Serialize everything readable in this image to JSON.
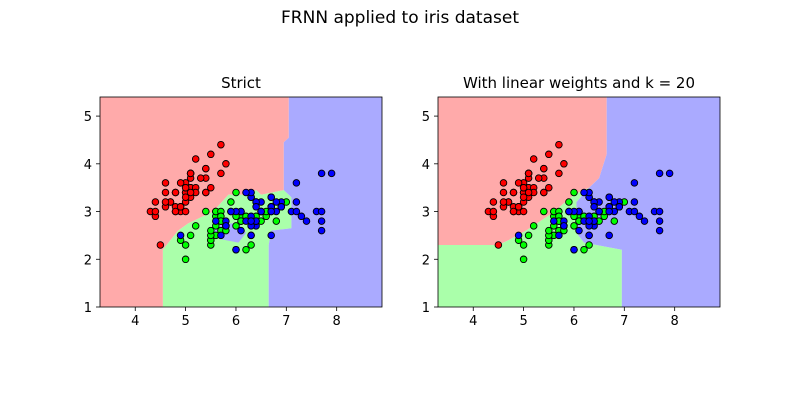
{
  "figure": {
    "suptitle": "FRNN applied to iris dataset"
  },
  "colors": {
    "region_setosa": "#ffaaaa",
    "region_versicolor": "#aaffaa",
    "region_virginica": "#aaaaff",
    "point_setosa": "#ff0000",
    "point_versicolor": "#00ff00",
    "point_virginica": "#0000ff",
    "point_edge": "#000000"
  },
  "chart_data": [
    {
      "type": "scatter",
      "title": "Strict",
      "xlabel": "",
      "ylabel": "",
      "xlim": [
        3.3,
        8.9
      ],
      "ylim": [
        1.0,
        5.4
      ],
      "xticks": [
        4,
        5,
        6,
        7,
        8
      ],
      "yticks": [
        1,
        2,
        3,
        4,
        5
      ],
      "grid": false,
      "background": "decision regions",
      "regions": [
        {
          "class": 0,
          "polygon": [
            [
              3.3,
              5.4
            ],
            [
              7.05,
              5.4
            ],
            [
              7.05,
              4.55
            ],
            [
              6.95,
              4.45
            ],
            [
              6.95,
              3.45
            ],
            [
              6.5,
              3.35
            ],
            [
              6.4,
              3.45
            ],
            [
              6.25,
              3.35
            ],
            [
              5.85,
              3.35
            ],
            [
              5.55,
              3.0
            ],
            [
              5.05,
              2.75
            ],
            [
              4.85,
              2.6
            ],
            [
              4.55,
              2.2
            ],
            [
              4.55,
              1.0
            ],
            [
              3.3,
              1.0
            ]
          ]
        },
        {
          "class": 1,
          "polygon": [
            [
              4.55,
              2.2
            ],
            [
              4.85,
              2.6
            ],
            [
              5.05,
              2.75
            ],
            [
              5.55,
              3.0
            ],
            [
              5.85,
              3.35
            ],
            [
              6.25,
              3.35
            ],
            [
              6.4,
              3.45
            ],
            [
              6.5,
              3.35
            ],
            [
              6.95,
              3.45
            ],
            [
              7.1,
              3.3
            ],
            [
              7.1,
              2.65
            ],
            [
              6.7,
              2.6
            ],
            [
              6.65,
              2.3
            ],
            [
              6.65,
              1.0
            ],
            [
              4.55,
              1.0
            ]
          ]
        },
        {
          "class": 2,
          "polygon": [
            [
              7.05,
              5.4
            ],
            [
              8.9,
              5.4
            ],
            [
              8.9,
              1.0
            ],
            [
              6.65,
              1.0
            ],
            [
              6.65,
              2.3
            ],
            [
              6.7,
              2.6
            ],
            [
              7.1,
              2.65
            ],
            [
              7.1,
              3.3
            ],
            [
              6.95,
              3.45
            ],
            [
              6.95,
              4.45
            ],
            [
              7.05,
              4.55
            ]
          ]
        },
        {
          "class": 2,
          "polygon": [
            [
              5.55,
              2.45
            ],
            [
              6.05,
              2.35
            ],
            [
              6.2,
              2.55
            ],
            [
              6.05,
              2.75
            ],
            [
              5.75,
              2.75
            ],
            [
              5.55,
              2.6
            ]
          ]
        }
      ]
    },
    {
      "type": "scatter",
      "title": "With linear weights and k = 20",
      "xlabel": "",
      "ylabel": "",
      "xlim": [
        3.3,
        8.9
      ],
      "ylim": [
        1.0,
        5.4
      ],
      "xticks": [
        4,
        5,
        6,
        7,
        8
      ],
      "yticks": [
        1,
        2,
        3,
        4,
        5
      ],
      "grid": false,
      "background": "decision regions",
      "regions": [
        {
          "class": 0,
          "polygon": [
            [
              3.3,
              5.4
            ],
            [
              6.65,
              5.4
            ],
            [
              6.65,
              4.2
            ],
            [
              6.5,
              3.7
            ],
            [
              6.3,
              3.5
            ],
            [
              6.0,
              3.35
            ],
            [
              5.55,
              2.95
            ],
            [
              5.05,
              2.6
            ],
            [
              4.7,
              2.4
            ],
            [
              4.5,
              2.3
            ],
            [
              3.3,
              2.3
            ]
          ]
        },
        {
          "class": 1,
          "polygon": [
            [
              3.3,
              2.3
            ],
            [
              4.5,
              2.3
            ],
            [
              4.7,
              2.4
            ],
            [
              5.05,
              2.6
            ],
            [
              5.55,
              2.95
            ],
            [
              6.0,
              3.35
            ],
            [
              6.3,
              3.5
            ],
            [
              6.05,
              3.2
            ],
            [
              6.05,
              2.55
            ],
            [
              6.2,
              2.35
            ],
            [
              6.95,
              2.2
            ],
            [
              6.95,
              1.0
            ],
            [
              3.3,
              1.0
            ]
          ]
        },
        {
          "class": 2,
          "polygon": [
            [
              6.65,
              5.4
            ],
            [
              8.9,
              5.4
            ],
            [
              8.9,
              1.0
            ],
            [
              6.95,
              1.0
            ],
            [
              6.95,
              2.2
            ],
            [
              6.2,
              2.35
            ],
            [
              6.05,
              2.55
            ],
            [
              6.05,
              3.2
            ],
            [
              6.3,
              3.5
            ],
            [
              6.5,
              3.7
            ],
            [
              6.65,
              4.2
            ]
          ]
        }
      ]
    }
  ],
  "points": {
    "series": [
      {
        "class": 0,
        "xy": [
          [
            5.1,
            3.5
          ],
          [
            4.9,
            3.0
          ],
          [
            4.7,
            3.2
          ],
          [
            4.6,
            3.1
          ],
          [
            5.0,
            3.6
          ],
          [
            5.4,
            3.9
          ],
          [
            4.6,
            3.4
          ],
          [
            5.0,
            3.4
          ],
          [
            4.4,
            2.9
          ],
          [
            4.9,
            3.1
          ],
          [
            5.4,
            3.7
          ],
          [
            4.8,
            3.4
          ],
          [
            4.8,
            3.0
          ],
          [
            4.3,
            3.0
          ],
          [
            5.8,
            4.0
          ],
          [
            5.7,
            4.4
          ],
          [
            5.4,
            3.9
          ],
          [
            5.1,
            3.5
          ],
          [
            5.7,
            3.8
          ],
          [
            5.1,
            3.8
          ],
          [
            5.4,
            3.4
          ],
          [
            5.1,
            3.7
          ],
          [
            4.6,
            3.6
          ],
          [
            5.1,
            3.3
          ],
          [
            4.8,
            3.4
          ],
          [
            5.0,
            3.0
          ],
          [
            5.0,
            3.4
          ],
          [
            5.2,
            3.5
          ],
          [
            5.2,
            3.4
          ],
          [
            4.7,
            3.2
          ],
          [
            4.8,
            3.1
          ],
          [
            5.4,
            3.4
          ],
          [
            5.2,
            4.1
          ],
          [
            5.5,
            4.2
          ],
          [
            4.9,
            3.1
          ],
          [
            5.0,
            3.2
          ],
          [
            5.5,
            3.5
          ],
          [
            4.9,
            3.6
          ],
          [
            4.4,
            3.0
          ],
          [
            5.1,
            3.4
          ],
          [
            5.0,
            3.5
          ],
          [
            4.5,
            2.3
          ],
          [
            4.4,
            3.2
          ],
          [
            5.0,
            3.5
          ],
          [
            5.1,
            3.8
          ],
          [
            4.8,
            3.0
          ],
          [
            5.1,
            3.8
          ],
          [
            4.6,
            3.2
          ],
          [
            5.3,
            3.7
          ],
          [
            5.0,
            3.3
          ]
        ]
      },
      {
        "class": 1,
        "xy": [
          [
            7.0,
            3.2
          ],
          [
            6.4,
            3.2
          ],
          [
            6.9,
            3.1
          ],
          [
            5.5,
            2.3
          ],
          [
            6.5,
            2.8
          ],
          [
            5.7,
            2.8
          ],
          [
            6.3,
            3.3
          ],
          [
            4.9,
            2.4
          ],
          [
            6.6,
            2.9
          ],
          [
            5.2,
            2.7
          ],
          [
            5.0,
            2.0
          ],
          [
            5.9,
            3.0
          ],
          [
            6.0,
            2.2
          ],
          [
            6.1,
            2.9
          ],
          [
            5.6,
            2.9
          ],
          [
            6.7,
            3.1
          ],
          [
            5.6,
            3.0
          ],
          [
            5.8,
            2.7
          ],
          [
            6.2,
            2.2
          ],
          [
            5.6,
            2.5
          ],
          [
            5.9,
            3.2
          ],
          [
            6.1,
            2.8
          ],
          [
            6.3,
            2.5
          ],
          [
            6.1,
            2.8
          ],
          [
            6.4,
            2.9
          ],
          [
            6.6,
            3.0
          ],
          [
            6.8,
            2.8
          ],
          [
            6.7,
            3.0
          ],
          [
            6.0,
            2.9
          ],
          [
            5.7,
            2.6
          ],
          [
            5.5,
            2.4
          ],
          [
            5.5,
            2.4
          ],
          [
            5.8,
            2.7
          ],
          [
            6.0,
            2.7
          ],
          [
            5.4,
            3.0
          ],
          [
            6.0,
            3.4
          ],
          [
            6.7,
            3.1
          ],
          [
            6.3,
            2.3
          ],
          [
            5.6,
            3.0
          ],
          [
            5.5,
            2.5
          ],
          [
            5.5,
            2.6
          ],
          [
            6.1,
            3.0
          ],
          [
            5.8,
            2.6
          ],
          [
            5.0,
            2.3
          ],
          [
            5.6,
            2.7
          ],
          [
            5.7,
            3.0
          ],
          [
            5.7,
            2.9
          ],
          [
            6.2,
            2.9
          ],
          [
            5.1,
            2.5
          ],
          [
            5.7,
            2.8
          ]
        ]
      },
      {
        "class": 2,
        "xy": [
          [
            6.3,
            3.3
          ],
          [
            5.8,
            2.7
          ],
          [
            7.1,
            3.0
          ],
          [
            6.3,
            2.9
          ],
          [
            6.5,
            3.0
          ],
          [
            7.6,
            3.0
          ],
          [
            4.9,
            2.5
          ],
          [
            7.3,
            2.9
          ],
          [
            6.7,
            2.5
          ],
          [
            7.2,
            3.6
          ],
          [
            6.5,
            3.2
          ],
          [
            6.4,
            2.7
          ],
          [
            6.8,
            3.0
          ],
          [
            5.7,
            2.5
          ],
          [
            5.8,
            2.8
          ],
          [
            6.4,
            3.2
          ],
          [
            6.5,
            3.0
          ],
          [
            7.7,
            3.8
          ],
          [
            7.7,
            2.6
          ],
          [
            6.0,
            2.2
          ],
          [
            6.9,
            3.2
          ],
          [
            5.6,
            2.8
          ],
          [
            7.7,
            2.8
          ],
          [
            6.3,
            2.7
          ],
          [
            6.7,
            3.3
          ],
          [
            7.2,
            3.2
          ],
          [
            6.2,
            2.8
          ],
          [
            6.1,
            3.0
          ],
          [
            6.4,
            2.8
          ],
          [
            7.2,
            3.0
          ],
          [
            7.4,
            2.8
          ],
          [
            7.9,
            3.8
          ],
          [
            6.4,
            2.8
          ],
          [
            6.3,
            2.8
          ],
          [
            6.1,
            2.6
          ],
          [
            7.7,
            3.0
          ],
          [
            6.3,
            3.4
          ],
          [
            6.4,
            3.1
          ],
          [
            6.0,
            3.0
          ],
          [
            6.9,
            3.1
          ],
          [
            6.7,
            3.1
          ],
          [
            6.9,
            3.1
          ],
          [
            5.8,
            2.7
          ],
          [
            6.8,
            3.2
          ],
          [
            6.7,
            3.3
          ],
          [
            6.7,
            3.0
          ],
          [
            6.3,
            2.5
          ],
          [
            6.5,
            3.0
          ],
          [
            6.2,
            3.4
          ],
          [
            5.9,
            3.0
          ]
        ]
      }
    ]
  }
}
